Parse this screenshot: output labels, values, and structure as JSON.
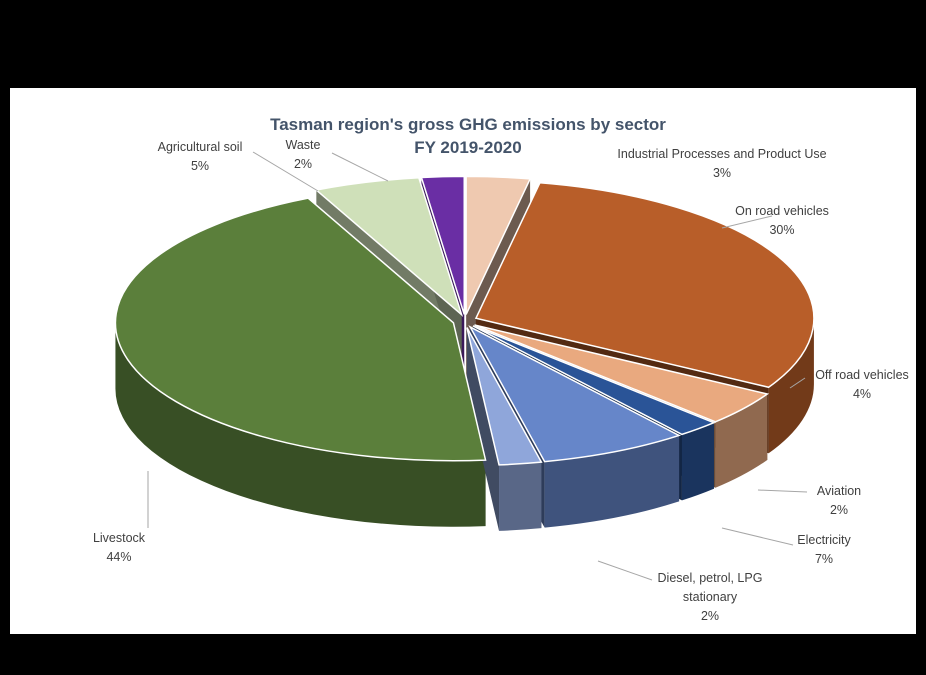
{
  "chart_data": {
    "type": "pie",
    "title": "Tasman region's gross GHG emissions by sector",
    "subtitle": "FY 2019-2020",
    "slices": [
      {
        "label": "Industrial Processes and Product Use",
        "percent_label": "3%",
        "value": 3,
        "color": "#efc9b0"
      },
      {
        "label": "On road vehicles",
        "percent_label": "30%",
        "value": 30,
        "color": "#b85e29"
      },
      {
        "label": "Off road vehicles",
        "percent_label": "4%",
        "value": 4,
        "color": "#e9a97f"
      },
      {
        "label": "Aviation",
        "percent_label": "2%",
        "value": 2,
        "color": "#2a5497"
      },
      {
        "label": "Electricity",
        "percent_label": "7%",
        "value": 7,
        "color": "#6686c9"
      },
      {
        "label": "Diesel, petrol, LPG stationary",
        "percent_label": "2%",
        "value": 2,
        "color": "#8fa6da"
      },
      {
        "label": "Livestock",
        "percent_label": "44%",
        "value": 44,
        "color": "#5b7f3b"
      },
      {
        "label": "Agricultural soil",
        "percent_label": "5%",
        "value": 5,
        "color": "#cfe0b9"
      },
      {
        "label": "Waste",
        "percent_label": "2%",
        "value": 2,
        "color": "#6a2ea4"
      }
    ],
    "exploded": true,
    "style": "3d"
  }
}
